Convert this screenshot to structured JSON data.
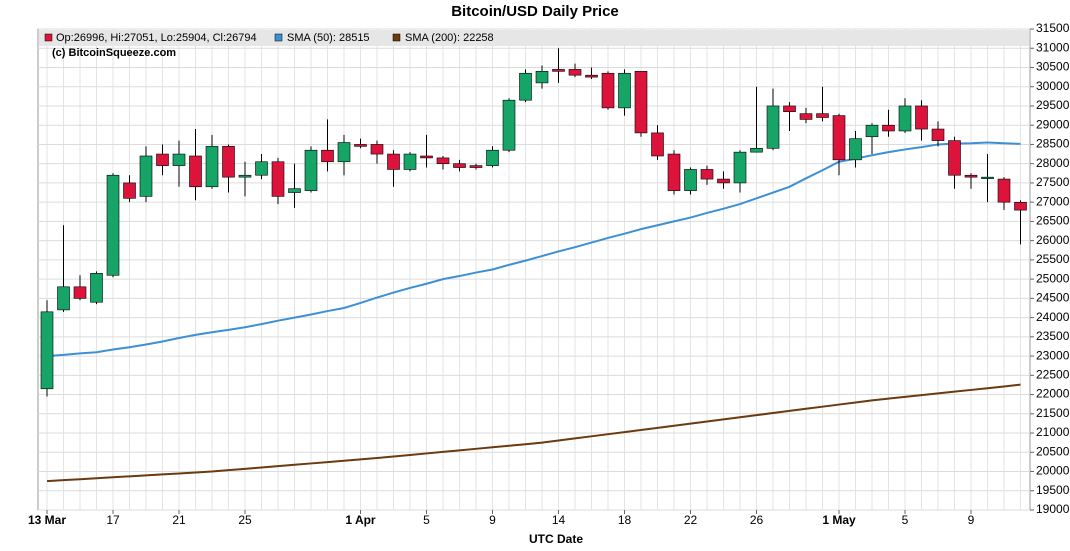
{
  "chart_data": {
    "type": "candlestick",
    "title": "Bitcoin/USD Daily Price",
    "x_label": "UTC Date",
    "watermark": "(c) BitcoinSqueeze.com",
    "ohlc_label": "Op:26996, Hi:27051, Lo:25904, Cl:26794",
    "categories": [
      "13 Mar",
      null,
      null,
      null,
      "17",
      null,
      null,
      null,
      "21",
      null,
      null,
      null,
      "25",
      null,
      null,
      null,
      null,
      null,
      null,
      "1 Apr",
      null,
      null,
      null,
      "5",
      null,
      null,
      null,
      "9",
      null,
      null,
      null,
      "14",
      null,
      null,
      null,
      "18",
      null,
      null,
      null,
      "22",
      null,
      null,
      null,
      "26",
      null,
      null,
      null,
      null,
      "1 May",
      null,
      null,
      null,
      "5",
      null,
      null,
      null,
      "9",
      null,
      null,
      null
    ],
    "open": [
      22150,
      24200,
      24800,
      24400,
      25100,
      27500,
      27150,
      28250,
      27950,
      28200,
      27400,
      28450,
      27650,
      27700,
      28050,
      27250,
      27300,
      28350,
      28050,
      28500,
      28500,
      28250,
      27850,
      28200,
      28150,
      28000,
      27950,
      27950,
      28350,
      29650,
      30100,
      30450,
      30450,
      30300,
      30350,
      29450,
      30400,
      28800,
      28250,
      27300,
      27850,
      27600,
      27500,
      28300,
      28400,
      29500,
      29300,
      29300,
      29250,
      28100,
      28700,
      29000,
      28850,
      29500,
      28900,
      28600,
      27700,
      27650,
      27600,
      26996
    ],
    "high": [
      24450,
      26400,
      25100,
      25200,
      27750,
      27700,
      28450,
      28500,
      28600,
      28900,
      28750,
      28500,
      28050,
      28250,
      28150,
      28000,
      28450,
      29150,
      28750,
      28650,
      28600,
      28350,
      28300,
      28750,
      28200,
      28100,
      28000,
      28450,
      29700,
      30450,
      30550,
      31000,
      30600,
      30500,
      30400,
      30450,
      30400,
      29000,
      28350,
      27900,
      27950,
      27800,
      28350,
      30000,
      29950,
      29600,
      29450,
      30000,
      29300,
      28850,
      29050,
      29400,
      29700,
      29650,
      29100,
      28700,
      27750,
      28250,
      27650,
      27051
    ],
    "low": [
      21950,
      24150,
      24450,
      24350,
      25050,
      27000,
      27000,
      27700,
      27400,
      27050,
      27350,
      27250,
      27150,
      27600,
      26950,
      26850,
      27250,
      27800,
      27700,
      28400,
      28000,
      27400,
      27800,
      27900,
      27850,
      27800,
      27850,
      27900,
      28300,
      29600,
      29950,
      30100,
      30250,
      30200,
      29400,
      29250,
      28700,
      28100,
      27200,
      27200,
      27450,
      27350,
      27250,
      28300,
      28350,
      28850,
      29050,
      29100,
      27700,
      27900,
      28250,
      28700,
      28800,
      28600,
      28450,
      27350,
      27350,
      27000,
      26800,
      25904
    ],
    "close": [
      24150,
      24800,
      24500,
      25150,
      27700,
      27100,
      28200,
      27950,
      28250,
      27400,
      28450,
      27650,
      27700,
      28050,
      27150,
      27350,
      28350,
      28050,
      28550,
      28450,
      28250,
      27850,
      28250,
      28150,
      28000,
      27900,
      27900,
      28350,
      29650,
      30350,
      30400,
      30400,
      30300,
      30250,
      29450,
      30350,
      28800,
      28200,
      27300,
      27850,
      27600,
      27500,
      28300,
      28400,
      29500,
      29350,
      29150,
      29200,
      28100,
      28650,
      29000,
      28850,
      29500,
      28900,
      28600,
      27700,
      27650,
      27650,
      27000,
      26794
    ],
    "up_color": "#16a566",
    "down_color": "#dc143c",
    "series": [
      {
        "name": "SMA (50): 28515",
        "color": "#3d8fd6",
        "values": [
          23000,
          23030,
          23070,
          23100,
          23170,
          23230,
          23300,
          23380,
          23470,
          23550,
          23620,
          23680,
          23750,
          23830,
          23920,
          24000,
          24080,
          24170,
          24250,
          24380,
          24520,
          24650,
          24770,
          24880,
          25000,
          25080,
          25170,
          25250,
          25370,
          25480,
          25600,
          25720,
          25830,
          25950,
          26070,
          26180,
          26300,
          26400,
          26500,
          26600,
          26720,
          26830,
          26950,
          27100,
          27250,
          27400,
          27620,
          27830,
          28050,
          28130,
          28220,
          28300,
          28370,
          28430,
          28500,
          28520,
          28530,
          28550,
          28530,
          28515
        ]
      },
      {
        "name": "SMA (200): 22258",
        "color": "#6b3a0e",
        "values": [
          19750,
          19775,
          19800,
          19825,
          19850,
          19875,
          19900,
          19925,
          19950,
          19975,
          20000,
          20035,
          20070,
          20105,
          20140,
          20175,
          20210,
          20245,
          20280,
          20315,
          20350,
          20390,
          20430,
          20470,
          20510,
          20550,
          20590,
          20630,
          20670,
          20710,
          20750,
          20805,
          20860,
          20915,
          20970,
          21025,
          21080,
          21135,
          21190,
          21245,
          21300,
          21355,
          21410,
          21465,
          21520,
          21575,
          21630,
          21685,
          21740,
          21795,
          21850,
          21895,
          21940,
          21985,
          22030,
          22075,
          22120,
          22165,
          22210,
          22258
        ]
      }
    ],
    "ylim": [
      19000,
      31500
    ],
    "yticks": [
      19000,
      19500,
      20000,
      20500,
      21000,
      21500,
      22000,
      22500,
      23000,
      23500,
      24000,
      24500,
      25000,
      25500,
      26000,
      26500,
      27000,
      27500,
      28000,
      28500,
      29000,
      29500,
      30000,
      30500,
      31000,
      31500
    ],
    "grid": true
  }
}
